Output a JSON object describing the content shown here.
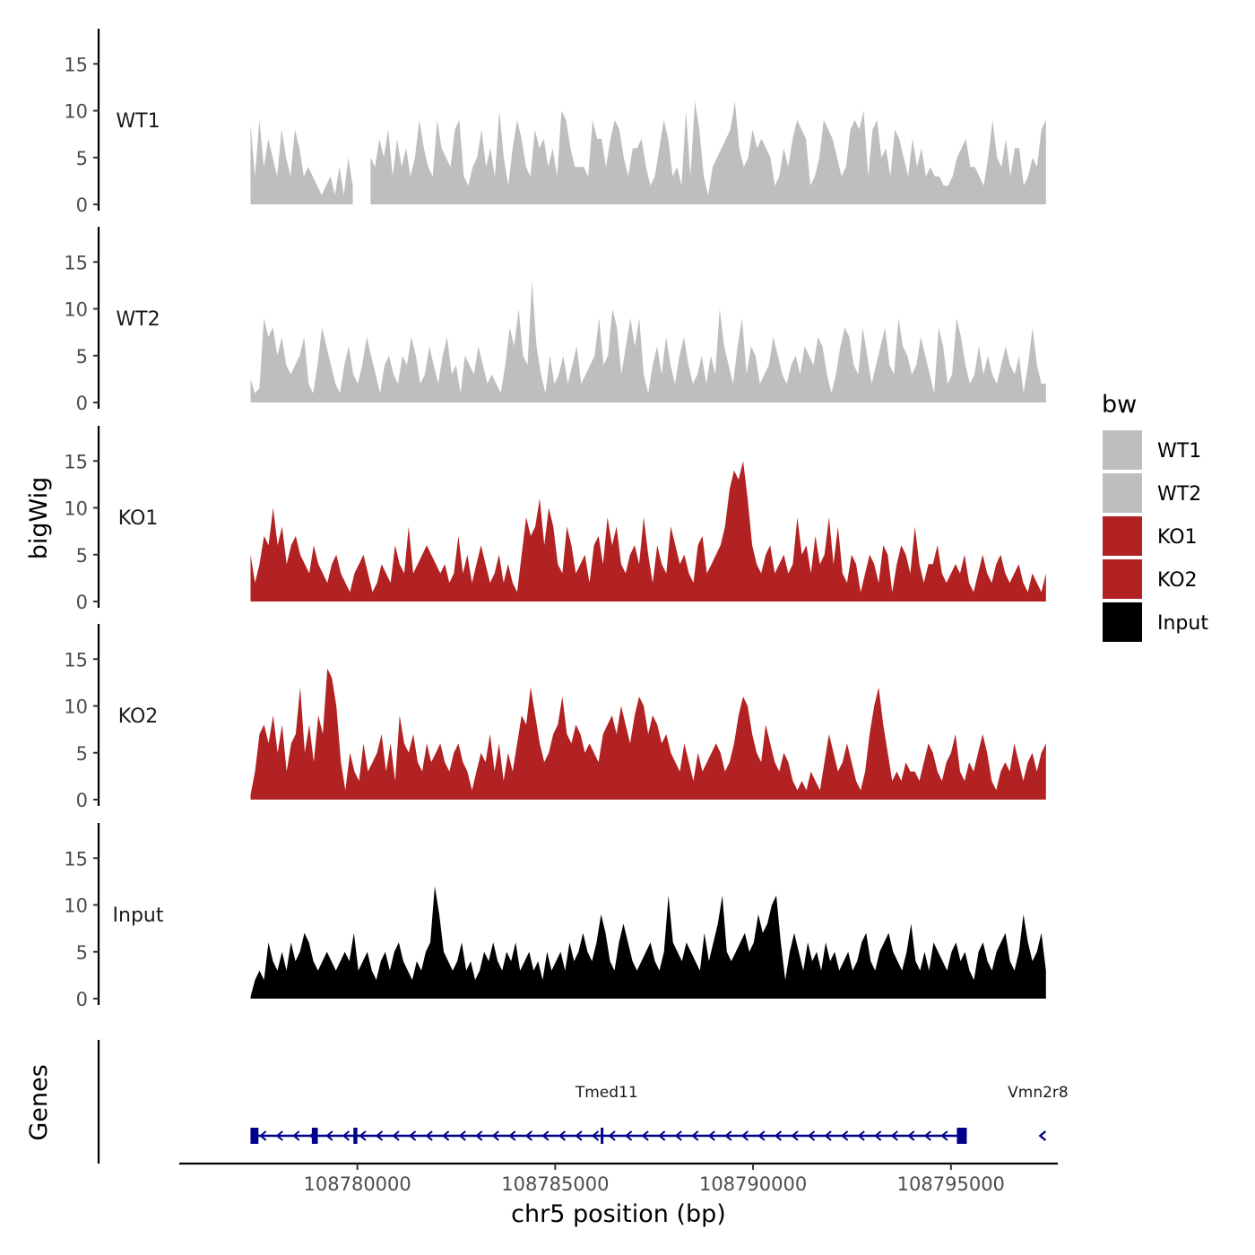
{
  "chart_data": {
    "type": "area",
    "ylabel": "bigWig",
    "genes_label": "Genes",
    "xlabel": "chr5 position (bp)",
    "xlim": [
      108775500,
      108797700
    ],
    "data_x_range": [
      108777300,
      108797400
    ],
    "ylim": [
      0,
      19
    ],
    "y_ticks": [
      0,
      5,
      10,
      15
    ],
    "x_ticks": [
      {
        "value": 108780000,
        "label": "108780000"
      },
      {
        "value": 108785000,
        "label": "108785000"
      },
      {
        "value": 108790000,
        "label": "108790000"
      },
      {
        "value": 108795000,
        "label": "108795000"
      }
    ],
    "legend": {
      "title": "bw",
      "entries": [
        {
          "label": "WT1",
          "color": "#bebebe"
        },
        {
          "label": "WT2",
          "color": "#bebebe"
        },
        {
          "label": "KO1",
          "color": "#b22222"
        },
        {
          "label": "KO2",
          "color": "#b22222"
        },
        {
          "label": "Input",
          "color": "#000000"
        }
      ]
    },
    "tracks": [
      {
        "name": "WT1",
        "color": "#bebebe",
        "values": [
          8.5,
          3,
          9,
          4,
          7,
          5,
          3,
          8,
          5,
          3,
          8,
          6,
          3,
          4,
          3,
          2,
          1,
          2,
          3,
          1,
          4,
          1,
          5,
          2,
          0.2,
          0,
          0,
          5,
          4,
          7,
          5,
          8,
          3,
          7,
          4,
          6,
          3,
          5,
          9,
          6,
          4,
          3,
          9,
          6,
          5,
          4,
          8,
          9,
          3,
          2,
          4,
          5,
          8,
          4,
          6,
          3,
          10,
          5,
          2,
          6,
          9,
          7,
          4,
          3,
          8,
          6,
          7,
          4,
          6,
          3,
          10,
          9,
          6,
          4,
          4,
          4,
          3,
          9,
          7,
          7,
          4,
          7,
          9,
          8,
          5,
          3,
          6,
          6,
          7,
          4,
          2,
          3,
          6,
          9,
          7,
          3,
          4,
          2,
          10,
          3,
          11,
          8,
          3,
          1,
          4,
          5,
          6,
          7,
          8,
          11,
          6,
          4,
          5,
          8,
          6,
          7,
          6,
          5,
          2,
          3,
          6,
          4,
          7,
          9,
          8,
          7,
          2,
          3,
          5,
          9,
          8,
          7,
          5,
          3,
          4,
          8,
          9,
          8,
          10,
          3,
          8,
          9,
          5,
          6,
          3,
          8,
          7,
          5,
          3,
          7,
          4,
          6,
          3,
          4,
          3,
          3,
          2,
          2,
          3,
          5,
          6,
          7,
          4,
          4,
          3,
          2,
          5,
          9,
          5,
          4,
          7,
          3,
          6,
          6,
          2,
          3,
          5,
          4,
          8,
          9
        ],
        "gap": [
          24,
          26
        ]
      },
      {
        "name": "WT2",
        "color": "#bebebe",
        "values": [
          2.5,
          1,
          1.5,
          9,
          7,
          8,
          5,
          7,
          4,
          3,
          4,
          5,
          7,
          2,
          1,
          4,
          8,
          6,
          4,
          2,
          1,
          4,
          6,
          3,
          2,
          4,
          7,
          5,
          3,
          1,
          4,
          5,
          3,
          2,
          5,
          4,
          7,
          5,
          2,
          3,
          6,
          4,
          2,
          5,
          7,
          3,
          4,
          1,
          5,
          4,
          3,
          6,
          4,
          2,
          3,
          2,
          1,
          4,
          8,
          6,
          10,
          5,
          4,
          13,
          6,
          3,
          1,
          5,
          2,
          3,
          5,
          2,
          4,
          6,
          2,
          3,
          4,
          5,
          9,
          4,
          5,
          10,
          8,
          3,
          6,
          9,
          6,
          9,
          3,
          1,
          4,
          6,
          3,
          7,
          4,
          2,
          5,
          7,
          4,
          2,
          3,
          5,
          2,
          5,
          3,
          10,
          6,
          4,
          2,
          6,
          9,
          3,
          6,
          5,
          2,
          3,
          4,
          7,
          5,
          3,
          2,
          4,
          5,
          3,
          6,
          5,
          4,
          7,
          6,
          3,
          1,
          3,
          6,
          8,
          7,
          4,
          3,
          8,
          5,
          2,
          4,
          6,
          8,
          4,
          3,
          9,
          6,
          5,
          3,
          4,
          7,
          5,
          3,
          1,
          8,
          6,
          2,
          3,
          9,
          7,
          4,
          2,
          3,
          6,
          3,
          5,
          3,
          2,
          4,
          6,
          4,
          3,
          5,
          1,
          4,
          8,
          4,
          2,
          2
        ],
        "gap": null
      },
      {
        "name": "KO1",
        "color": "#b22222",
        "values": [
          5,
          2,
          4,
          7,
          6,
          10,
          6,
          8,
          4,
          6,
          7,
          5,
          4,
          3,
          6,
          4,
          3,
          2,
          4,
          5,
          3,
          2,
          1,
          3,
          4,
          5,
          3,
          1,
          2,
          4,
          3,
          2,
          6,
          4,
          3,
          8,
          3,
          4,
          5,
          6,
          5,
          4,
          3,
          4,
          2,
          3,
          7,
          3,
          5,
          2,
          4,
          6,
          4,
          2,
          3,
          5,
          2,
          4,
          2,
          1,
          5,
          9,
          7,
          8,
          11,
          6,
          10,
          8,
          4,
          3,
          8,
          6,
          3,
          4,
          5,
          2,
          6,
          7,
          4,
          9,
          6,
          8,
          4,
          3,
          5,
          6,
          4,
          9,
          5,
          2,
          6,
          4,
          3,
          8,
          6,
          4,
          5,
          3,
          2,
          6,
          7,
          3,
          4,
          5,
          6,
          8,
          12,
          14,
          13,
          15,
          11,
          6,
          4,
          3,
          5,
          6,
          3,
          4,
          5,
          3,
          4,
          9,
          5,
          6,
          3,
          7,
          4,
          5,
          9,
          4,
          8,
          3,
          2,
          5,
          4,
          1,
          3,
          5,
          4,
          2,
          6,
          5,
          1,
          4,
          6,
          5,
          3,
          8,
          4,
          2,
          4,
          4,
          6,
          3,
          2,
          3,
          4,
          3,
          5,
          2,
          1,
          3,
          5,
          3,
          2,
          4,
          5,
          3,
          2,
          3,
          4,
          2,
          1,
          3,
          2,
          1,
          3
        ],
        "gap": null
      },
      {
        "name": "KO2",
        "color": "#b22222",
        "values": [
          0.5,
          3,
          7,
          8,
          6,
          9,
          5,
          8,
          3,
          6,
          7,
          12,
          5,
          8,
          4,
          9,
          7,
          14,
          13,
          10,
          4,
          1,
          5,
          3,
          2,
          6,
          3,
          4,
          5,
          7,
          3,
          6,
          2,
          9,
          6,
          5,
          7,
          4,
          3,
          6,
          4,
          5,
          6,
          4,
          3,
          5,
          6,
          4,
          3,
          1,
          3,
          5,
          4,
          7,
          3,
          6,
          2,
          5,
          3,
          6,
          9,
          8,
          12,
          9,
          6,
          4,
          5,
          7,
          8,
          11,
          7,
          6,
          8,
          7,
          5,
          6,
          5,
          4,
          7,
          8,
          9,
          7,
          10,
          8,
          6,
          9,
          11,
          10,
          7,
          9,
          8,
          6,
          7,
          5,
          4,
          3,
          6,
          4,
          2,
          5,
          3,
          4,
          5,
          6,
          5,
          3,
          4,
          6,
          9,
          11,
          10,
          7,
          5,
          4,
          8,
          6,
          4,
          3,
          5,
          4,
          2,
          1,
          2,
          1,
          3,
          2,
          1,
          4,
          7,
          5,
          3,
          4,
          6,
          4,
          2,
          1,
          3,
          7,
          10,
          12,
          8,
          5,
          2,
          3,
          2,
          4,
          3,
          3,
          2,
          4,
          6,
          5,
          3,
          2,
          4,
          5,
          7,
          3,
          2,
          4,
          3,
          5,
          7,
          5,
          2,
          1,
          3,
          4,
          3,
          6,
          4,
          2,
          4,
          5,
          3,
          5,
          6
        ],
        "gap": null
      },
      {
        "name": "Input",
        "color": "#000000",
        "values": [
          0.2,
          2,
          3,
          2,
          6,
          4,
          3,
          5,
          3,
          6,
          4,
          5,
          7,
          6,
          4,
          3,
          4,
          5,
          4,
          3,
          4,
          5,
          4,
          7,
          3,
          4,
          5,
          3,
          2,
          4,
          5,
          3,
          5,
          6,
          4,
          3,
          2,
          4,
          3,
          5,
          6,
          12,
          9,
          5,
          4,
          3,
          4,
          6,
          3,
          4,
          2,
          3,
          5,
          4,
          6,
          4,
          3,
          5,
          4,
          6,
          3,
          4,
          5,
          3,
          4,
          2,
          5,
          3,
          4,
          5,
          3,
          6,
          4,
          5,
          7,
          5,
          4,
          6,
          9,
          7,
          4,
          3,
          6,
          8,
          6,
          4,
          3,
          4,
          5,
          6,
          4,
          3,
          5,
          11,
          6,
          5,
          4,
          6,
          5,
          4,
          3,
          7,
          4,
          6,
          8,
          11,
          5,
          4,
          5,
          6,
          7,
          5,
          6,
          9,
          7,
          8,
          10,
          11,
          6,
          2,
          5,
          7,
          5,
          3,
          6,
          4,
          5,
          3,
          6,
          4,
          5,
          3,
          4,
          5,
          3,
          4,
          6,
          7,
          4,
          3,
          5,
          6,
          7,
          5,
          4,
          3,
          5,
          8,
          4,
          3,
          5,
          3,
          6,
          5,
          4,
          3,
          5,
          6,
          4,
          5,
          3,
          2,
          5,
          6,
          4,
          3,
          5,
          6,
          7,
          4,
          3,
          5,
          9,
          6,
          4,
          5,
          7,
          3
        ],
        "gap": null
      }
    ],
    "genes": {
      "color": "#00008b",
      "line_start": 108777300,
      "line_end": 108795400,
      "exons": [
        {
          "start": 108777300,
          "end": 108777500
        },
        {
          "start": 108778850,
          "end": 108779000
        },
        {
          "start": 108779900,
          "end": 108780000
        },
        {
          "start": 108786150,
          "end": 108786200
        },
        {
          "start": 108795150,
          "end": 108795400
        }
      ],
      "arrow_spacing_bp": 420,
      "labels": [
        {
          "name": "Tmed11",
          "position": 108786300
        },
        {
          "name": "Vmn2r8",
          "position": 108797200
        }
      ],
      "extra_arrow_position": 108797300
    }
  }
}
